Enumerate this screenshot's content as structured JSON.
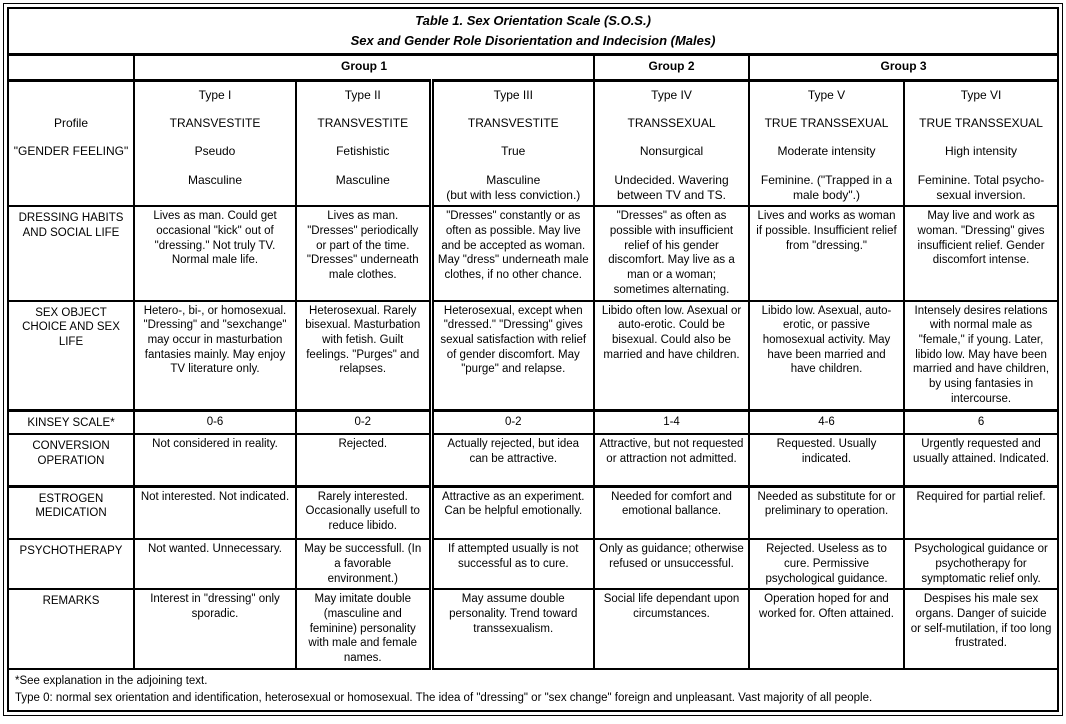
{
  "title": {
    "line1": "Table 1. Sex Orientation Scale (S.O.S.)",
    "line2": "Sex and Gender Role Disorientation and Indecision (Males)"
  },
  "groups": [
    "Group 1",
    "Group 2",
    "Group 3"
  ],
  "profile_header": {
    "line1": "Profile",
    "line2": "\"GENDER FEELING\""
  },
  "types": [
    {
      "name": "Type I",
      "category": "TRANSVESTITE",
      "subtype": "Pseudo",
      "feeling": "Masculine",
      "feeling2": ""
    },
    {
      "name": "Type II",
      "category": "TRANSVESTITE",
      "subtype": "Fetishistic",
      "feeling": "Masculine",
      "feeling2": ""
    },
    {
      "name": "Type III",
      "category": "TRANSVESTITE",
      "subtype": "True",
      "feeling": "Masculine",
      "feeling2": "(but with less conviction.)"
    },
    {
      "name": "Type IV",
      "category": "TRANSSEXUAL",
      "subtype": "Nonsurgical",
      "feeling": "Undecided. Wavering between TV and TS.",
      "feeling2": ""
    },
    {
      "name": "Type V",
      "category": "TRUE TRANSSEXUAL",
      "subtype": "Moderate intensity",
      "feeling": "Feminine. (\"Trapped in a male body\".)",
      "feeling2": ""
    },
    {
      "name": "Type VI",
      "category": "TRUE TRANSSEXUAL",
      "subtype": "High intensity",
      "feeling": "Feminine. Total psycho-sexual inversion.",
      "feeling2": ""
    }
  ],
  "rows": [
    {
      "label": "DRESSING HABITS AND SOCIAL LIFE",
      "cells": [
        "Lives as man. Could get occasional \"kick\" out of \"dressing.\" Not truly TV. Normal male life.",
        "Lives as man. \"Dresses\" periodically or part of the time. \"Dresses\" underneath male clothes.",
        "\"Dresses\" constantly or as often as possible. May live and be accepted as woman. May \"dress\" underneath male clothes, if no other chance.",
        "\"Dresses\" as often as possible with insufficient relief of his gender discomfort. May live as a man or a woman; sometimes alternating.",
        "Lives and works as woman if possible. Insufficient relief from \"dressing.\"",
        "May live and work as woman. \"Dressing\" gives insufficient relief. Gender discomfort intense."
      ]
    },
    {
      "label": "SEX OBJECT CHOICE AND SEX LIFE",
      "cells": [
        "Hetero-, bi-, or homosexual. \"Dressing\" and \"sexchange\" may occur in masturbation fantasies mainly. May enjoy TV literature only.",
        "Heterosexual. Rarely bisexual. Masturbation with fetish. Guilt feelings. \"Purges\" and relapses.",
        "Heterosexual, except when \"dressed.\" \"Dressing\" gives sexual satisfaction with relief of gender discomfort. May \"purge\" and relapse.",
        "Libido often low. Asexual or auto-erotic. Could be bisexual. Could also be married and have children.",
        "Libido low. Asexual, auto-erotic, or passive homosexual activity. May have been married and have children.",
        "Intensely desires relations with normal male as \"female,\" if young. Later, libido low. May have been married and have children, by using fantasies in intercourse."
      ]
    },
    {
      "label": "KINSEY SCALE*",
      "cells": [
        "0-6",
        "0-2",
        "0-2",
        "1-4",
        "4-6",
        "6"
      ]
    },
    {
      "label": "CONVERSION OPERATION",
      "cells": [
        "Not considered in reality.",
        "Rejected.",
        "Actually rejected, but idea can be attractive.",
        "Attractive, but not requested or attraction not admitted.",
        "Requested. Usually indicated.",
        "Urgently requested and usually attained. Indicated."
      ]
    },
    {
      "label": "ESTROGEN MEDICATION",
      "cells": [
        "Not interested. Not indicated.",
        "Rarely interested. Occasionally usefull to reduce libido.",
        "Attractive as an experiment. Can be helpful emotionally.",
        "Needed for comfort and emotional ballance.",
        "Needed as substitute for or preliminary to operation.",
        "Required for partial relief."
      ]
    },
    {
      "label": "PSYCHOTHERAPY",
      "cells": [
        "Not wanted. Unnecessary.",
        "May be successfull. (In a favorable environment.)",
        "If attempted usually is not successful as to cure.",
        "Only as guidance; otherwise refused or unsuccessful.",
        "Rejected. Useless as to cure. Permissive psychological guidance.",
        "Psychological guidance or psychotherapy for symptomatic relief only."
      ]
    },
    {
      "label": "REMARKS",
      "cells": [
        "Interest in \"dressing\" only sporadic.",
        "May imitate double (masculine and feminine) personality with male and female names.",
        "May assume double personality. Trend toward transsexualism.",
        "Social life dependant upon circumstances.",
        "Operation hoped for and worked for. Often attained.",
        "Despises his male sex organs. Danger of suicide or self-mutilation, if too long frustrated."
      ]
    }
  ],
  "footnotes": {
    "line1": "*See explanation in the adjoining text.",
    "line2": "Type 0: normal sex orientation and identification, heterosexual or homosexual. The idea of \"dressing\" or \"sex change\" foreign and unpleasant. Vast majority of all people."
  }
}
